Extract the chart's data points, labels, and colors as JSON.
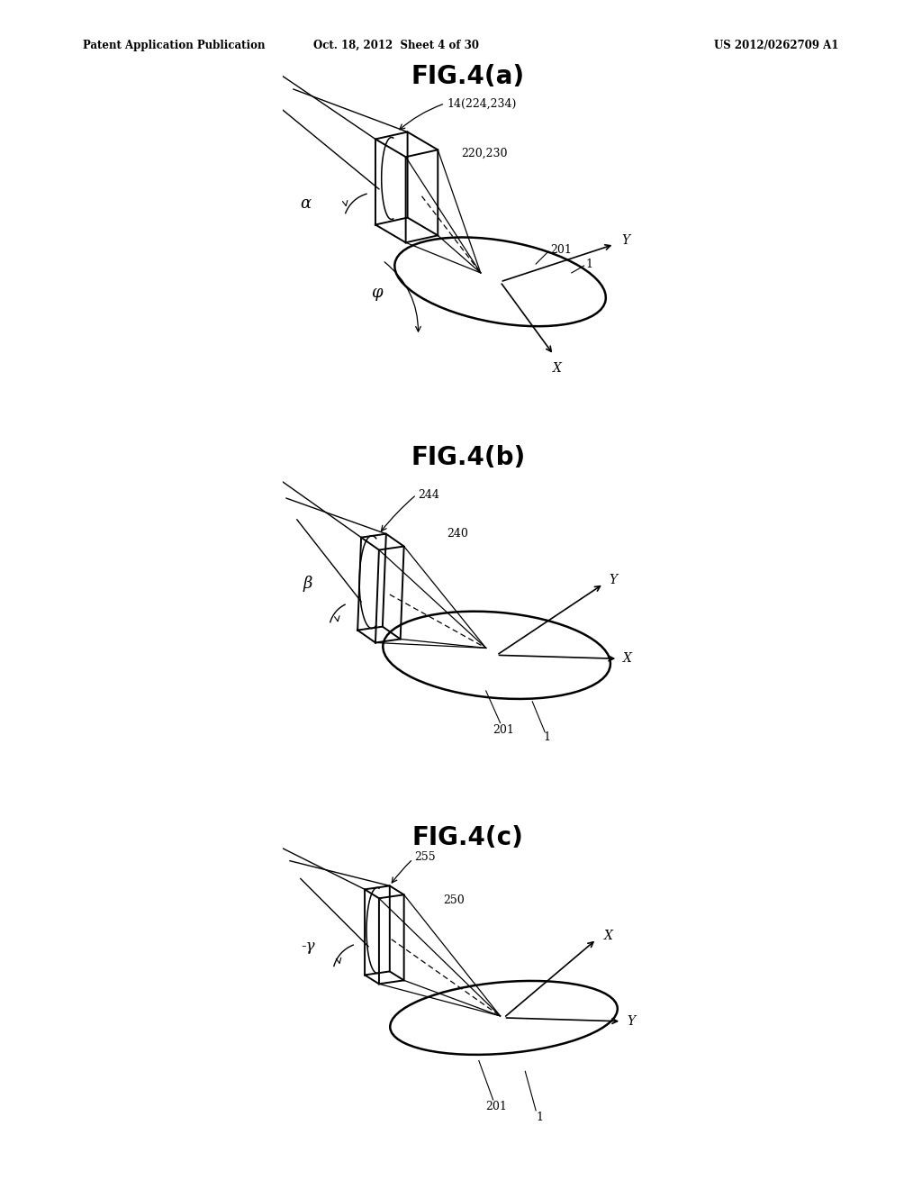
{
  "header_left": "Patent Application Publication",
  "header_mid": "Oct. 18, 2012  Sheet 4 of 30",
  "header_right": "US 2012/0262709 A1",
  "fig_a_title": "FIG.4(a)",
  "fig_b_title": "FIG.4(b)",
  "fig_c_title": "FIG.4(c)",
  "bg_color": "#ffffff",
  "fig_a": {
    "label_box": "14(224,234)",
    "label_cone": "220,230",
    "label_ellipse": "201",
    "label_wafer": "1",
    "label_alpha": "α",
    "label_phi": "φ"
  },
  "fig_b": {
    "label_box": "244",
    "label_cone": "240",
    "label_ellipse": "201",
    "label_wafer": "1",
    "label_beta": "β"
  },
  "fig_c": {
    "label_box": "255",
    "label_cone": "250",
    "label_ellipse": "201",
    "label_wafer": "1",
    "label_gamma": "-γ"
  }
}
